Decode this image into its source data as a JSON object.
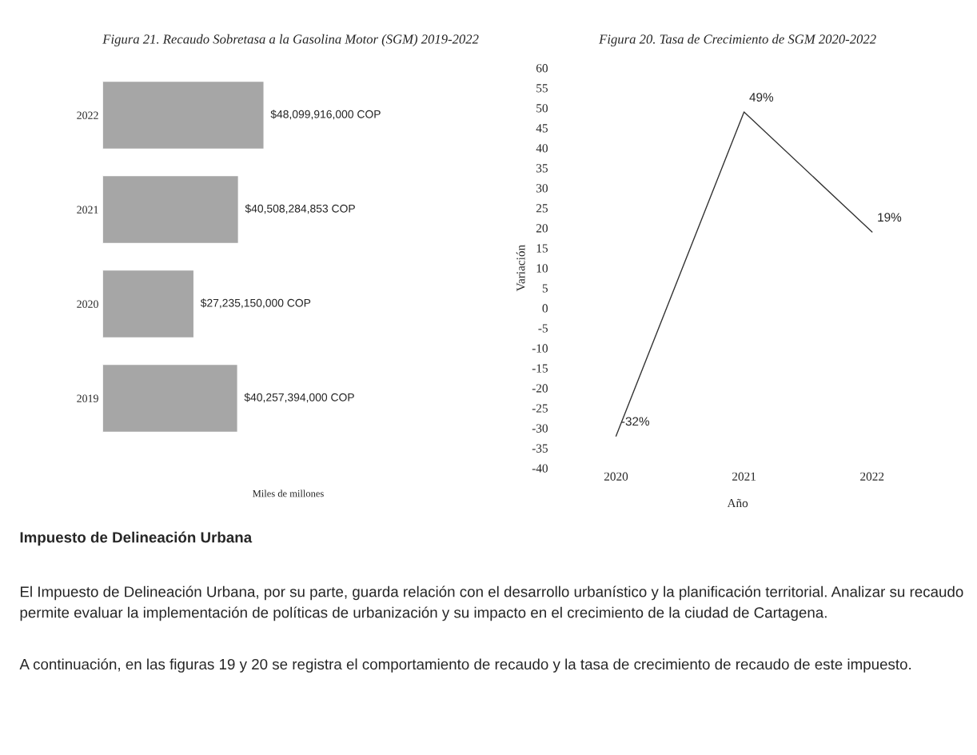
{
  "chart_data": [
    {
      "type": "bar",
      "orientation": "horizontal",
      "title": "Figura 21. Recaudo Sobretasa a la Gasolina Motor (SGM) 2019-2022",
      "xlabel": "Miles de millones",
      "categories": [
        "2022",
        "2021",
        "2020",
        "2019"
      ],
      "values": [
        48099916000,
        40508284853,
        27235150000,
        40257394000
      ],
      "value_labels": [
        "$48,099,916,000 COP",
        "$40,508,284,853 COP",
        "$27,235,150,000 COP",
        "$40,257,394,000 COP"
      ],
      "color": "#a6a6a6",
      "grid": false,
      "legend": false
    },
    {
      "type": "line",
      "title": "Figura 20. Tasa de Crecimiento de SGM 2020-2022",
      "xlabel": "Año",
      "ylabel": "Variación",
      "categories": [
        "2020",
        "2021",
        "2022"
      ],
      "values": [
        -32,
        49,
        19
      ],
      "value_labels": [
        "-32%",
        "49%",
        "19%"
      ],
      "color": "#333333",
      "ylim": [
        -40,
        60
      ],
      "yticks": [
        -40,
        -35,
        -30,
        -25,
        -20,
        -15,
        -10,
        -5,
        0,
        5,
        10,
        15,
        20,
        25,
        30,
        35,
        40,
        45,
        50,
        55,
        60
      ],
      "marker": "none",
      "grid": false,
      "legend": false
    },
    {
      "type": "other",
      "annotations": [
        "Impuesto de Delineación Urbana",
        "El Impuesto de Delineación Urbana, por su parte, guarda relación con el desarrollo urbanístico y la planificación territorial. Analizar su recaudo permite evaluar la implementación de políticas de urbanización y su impacto en el crecimiento de la ciudad de Cartagena.",
        "A continuación, en las figuras 19 y 20 se registra el comportamiento de recaudo y la tasa de crecimiento de recaudo de este impuesto."
      ]
    }
  ]
}
